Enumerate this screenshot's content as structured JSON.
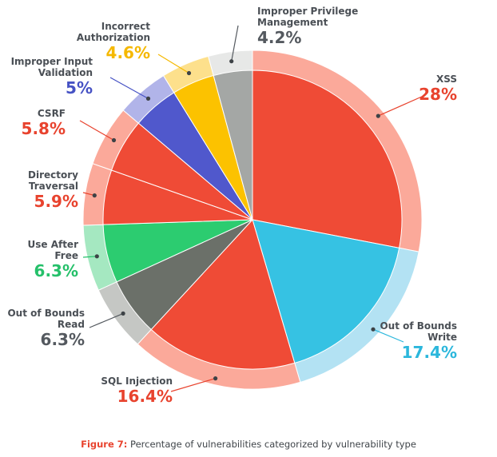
{
  "chart_data": {
    "type": "pie",
    "slices": [
      {
        "name": "XSS",
        "value": "28%",
        "pct": 28,
        "color": "#ef4b36",
        "ring": "#fba99a"
      },
      {
        "name": "Out of Bounds Write",
        "value": "17.4%",
        "pct": 17.4,
        "color": "#36c2e3",
        "ring": "#b3e2f3"
      },
      {
        "name": "SQL Injection",
        "value": "16.4%",
        "pct": 16.4,
        "color": "#ef4b36",
        "ring": "#fba99a"
      },
      {
        "name": "Out of Bounds Read",
        "value": "6.3%",
        "pct": 6.3,
        "color": "#6b7069",
        "ring": "#c5c7c4"
      },
      {
        "name": "Use After Free",
        "value": "6.3%",
        "pct": 6.3,
        "color": "#2ccc70",
        "ring": "#a5e8c1"
      },
      {
        "name": "Directory Traversal",
        "value": "5.9%",
        "pct": 5.9,
        "color": "#ef4b36",
        "ring": "#fba99a"
      },
      {
        "name": "CSRF",
        "value": "5.8%",
        "pct": 5.8,
        "color": "#ef4b36",
        "ring": "#fba99a"
      },
      {
        "name": "Improper Input Validation",
        "value": "5%",
        "pct": 5,
        "color": "#5058cc",
        "ring": "#b1b4e9"
      },
      {
        "name": "Incorrect Authorization",
        "value": "4.6%",
        "pct": 4.6,
        "color": "#fcc200",
        "ring": "#fde08c"
      },
      {
        "name": "Improper Privilege Management",
        "value": "4.2%",
        "pct": 4.2,
        "color": "#a4a7a5",
        "ring": "#e7e8e7"
      }
    ],
    "value_colors": [
      "#e8432e",
      "#2bb7dc",
      "#e8432e",
      "#54595f",
      "#25c06a",
      "#e8432e",
      "#e8432e",
      "#4652c4",
      "#f5b800",
      "#54595f"
    ]
  },
  "caption": {
    "figure": "Figure 7:",
    "text": " Percentage of vulnerabilities categorized by vulnerability type"
  }
}
